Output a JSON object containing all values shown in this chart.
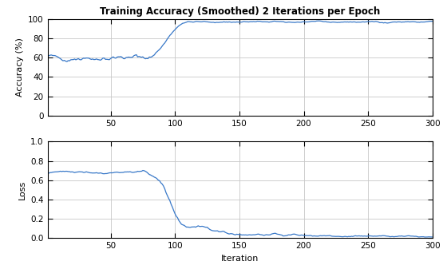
{
  "title": "Training Accuracy (Smoothed) 2 Iterations per Epoch",
  "ylabel_top": "Accuracy (%)",
  "ylabel_bottom": "Loss",
  "xlabel": "Iteration",
  "line_color": "#3878c8",
  "bg_color": "#ffffff",
  "xlim": [
    1,
    300
  ],
  "xticks": [
    50,
    100,
    150,
    200,
    250,
    300
  ],
  "acc_ylim": [
    0,
    100
  ],
  "acc_yticks": [
    0,
    20,
    40,
    60,
    80,
    100
  ],
  "loss_ylim": [
    0,
    1
  ],
  "loss_yticks": [
    0,
    0.2,
    0.4,
    0.6,
    0.8,
    1.0
  ],
  "seed": 42,
  "n_points": 300
}
